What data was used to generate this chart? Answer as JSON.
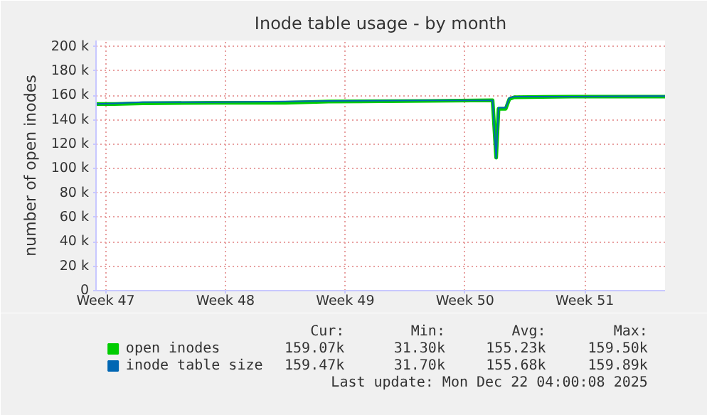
{
  "chart_data": {
    "type": "line",
    "title": "Inode table usage - by month",
    "ylabel": "number of open inodes",
    "xlim": [
      "2025-11-19T22:30",
      "2025-12-23T04:30"
    ],
    "ylim": [
      0,
      205000
    ],
    "xticks": [
      {
        "value": "2025-11-20T12:00",
        "label": "Week 47"
      },
      {
        "value": "2025-11-27T12:00",
        "label": "Week 48"
      },
      {
        "value": "2025-12-04T12:00",
        "label": "Week 49"
      },
      {
        "value": "2025-12-11T12:00",
        "label": "Week 50"
      },
      {
        "value": "2025-12-18T12:00",
        "label": "Week 51"
      }
    ],
    "yticks": [
      {
        "value": 0,
        "label": "0"
      },
      {
        "value": 20000,
        "label": "20 k"
      },
      {
        "value": 40000,
        "label": "40 k"
      },
      {
        "value": 60000,
        "label": "60 k"
      },
      {
        "value": 80000,
        "label": "80 k"
      },
      {
        "value": 100000,
        "label": "100 k"
      },
      {
        "value": 120000,
        "label": "120 k"
      },
      {
        "value": 140000,
        "label": "140 k"
      },
      {
        "value": 160000,
        "label": "160 k"
      },
      {
        "value": 180000,
        "label": "180 k"
      },
      {
        "value": 200000,
        "label": "200 k"
      }
    ],
    "x": [
      "2025-11-19T22:30",
      "2025-11-21T00:00",
      "2025-11-22T16:00",
      "2025-11-26T21:00",
      "2025-12-01T00:00",
      "2025-12-03T12:30",
      "2025-12-09T09:30",
      "2025-12-13T02:40",
      "2025-12-13T07:40",
      "2025-12-13T11:00",
      "2025-12-13T21:00",
      "2025-12-14T02:10",
      "2025-12-14T09:00",
      "2025-12-17T17:30",
      "2025-12-21T22:20",
      "2025-12-23T04:30"
    ],
    "series": [
      {
        "name": "open inodes",
        "color": "#00cc00",
        "values": [
          153000,
          153000,
          153500,
          154000,
          154000,
          155000,
          155500,
          156000,
          109000,
          149000,
          149000,
          157000,
          158500,
          159000,
          159000,
          159000
        ]
      },
      {
        "name": "inode table size",
        "color": "#0066b3",
        "values": [
          153000,
          153500,
          154500,
          154500,
          155000,
          155500,
          156000,
          156000,
          108500,
          150000,
          150000,
          158000,
          159000,
          159000,
          159500,
          159500
        ]
      }
    ],
    "annotations": [
      "Cur:",
      "Min:",
      "Avg:",
      "Max:",
      "159.07k",
      "31.30k",
      "155.23k",
      "159.50k",
      "159.47k",
      "31.70k",
      "155.68k",
      "159.89k",
      "Last update: Mon Dec 22 04:00:08 2025"
    ],
    "grid": true,
    "legend": "bottom",
    "marker": "none",
    "line_style": "solid"
  }
}
